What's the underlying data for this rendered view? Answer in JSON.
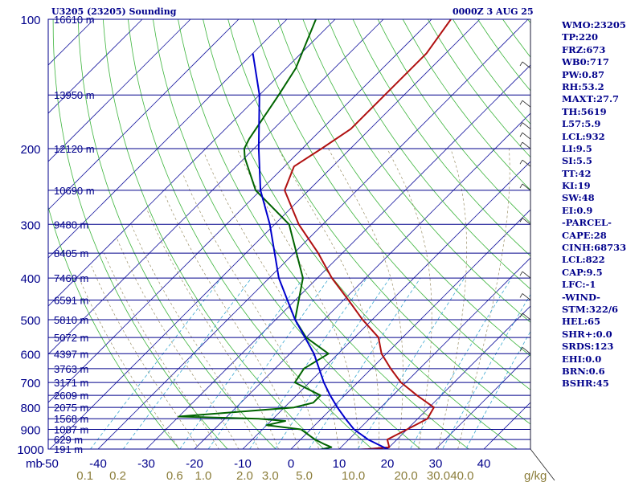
{
  "header": {
    "station": "U3205 (23205) Sounding",
    "valid": "0000Z  3 AUG 25"
  },
  "indices": [
    "WMO:23205",
    "TP:220",
    "FRZ:673",
    "WB0:717",
    "PW:0.87",
    "RH:53.2",
    "MAXT:27.7",
    "TH:5619",
    "L57:5.9",
    "LCL:932",
    "LI:9.5",
    "SI:5.5",
    "TT:42",
    "KI:19",
    "SW:48",
    "EI:0.9",
    "-PARCEL-",
    "CAPE:28",
    "CINH:68733",
    "LCL:822",
    "CAP:9.5",
    "LFC:-1",
    "-WIND-",
    "STM:322/6",
    "HEL:65",
    "SHR+:0.0",
    "SRDS:123",
    "EHI:0.0",
    "BRN:0.6",
    "BSHR:45"
  ],
  "chart_data": {
    "type": "line",
    "title": "U3205 (23205) Sounding",
    "xlabel": "",
    "ylabel": "mb",
    "y_scale": "log",
    "y_inverted": true,
    "ylim": [
      1000,
      100
    ],
    "xlim": [
      -50,
      50
    ],
    "x_ticks": [
      -50,
      -40,
      -30,
      -20,
      -10,
      0,
      10,
      20,
      30,
      40
    ],
    "x_tick_labels": [
      "-50",
      "-40",
      "-30",
      "-20",
      "-10",
      "0",
      "10",
      "20",
      "30",
      "40"
    ],
    "y_ticks": [
      100,
      200,
      300,
      400,
      500,
      600,
      700,
      800,
      900,
      1000
    ],
    "height_levels": [
      {
        "p": 100,
        "label": "16610 m"
      },
      {
        "p": 150,
        "label": "13950 m"
      },
      {
        "p": 200,
        "label": "12120 m"
      },
      {
        "p": 250,
        "label": "10690 m"
      },
      {
        "p": 300,
        "label": "9480 m"
      },
      {
        "p": 350,
        "label": "8405 m"
      },
      {
        "p": 400,
        "label": "7460 m"
      },
      {
        "p": 450,
        "label": "6591 m"
      },
      {
        "p": 500,
        "label": "5810 m"
      },
      {
        "p": 550,
        "label": "5072 m"
      },
      {
        "p": 600,
        "label": "4397 m"
      },
      {
        "p": 650,
        "label": "3763 m"
      },
      {
        "p": 700,
        "label": "3171 m"
      },
      {
        "p": 750,
        "label": "2609 m"
      },
      {
        "p": 800,
        "label": "2075 m"
      },
      {
        "p": 850,
        "label": "1568 m"
      },
      {
        "p": 900,
        "label": "1087 m"
      },
      {
        "p": 950,
        "label": "629 m"
      },
      {
        "p": 1000,
        "label": "191 m"
      }
    ],
    "mixing_ratio_labels": [
      "0.1",
      "0.2",
      "0.6",
      "1.0",
      "2.0",
      "3.0",
      "5.0",
      "10.0",
      "20.0",
      "30.0",
      "40.0"
    ],
    "mixing_ratio_unit": "g/kg",
    "series": [
      {
        "role": "temperature",
        "color": "#b01010",
        "values": [
          {
            "p": 1010,
            "t": 8
          },
          {
            "p": 1000,
            "t": 16
          },
          {
            "p": 990,
            "t": 20
          },
          {
            "p": 950,
            "t": 18
          },
          {
            "p": 900,
            "t": 20
          },
          {
            "p": 850,
            "t": 22
          },
          {
            "p": 800,
            "t": 21
          },
          {
            "p": 750,
            "t": 15
          },
          {
            "p": 700,
            "t": 9
          },
          {
            "p": 650,
            "t": 4
          },
          {
            "p": 600,
            "t": -1
          },
          {
            "p": 550,
            "t": -5
          },
          {
            "p": 500,
            "t": -12
          },
          {
            "p": 450,
            "t": -19
          },
          {
            "p": 400,
            "t": -27
          },
          {
            "p": 350,
            "t": -35
          },
          {
            "p": 300,
            "t": -45
          },
          {
            "p": 250,
            "t": -55
          },
          {
            "p": 220,
            "t": -58
          },
          {
            "p": 200,
            "t": -56
          },
          {
            "p": 180,
            "t": -54
          },
          {
            "p": 150,
            "t": -54
          },
          {
            "p": 120,
            "t": -54
          },
          {
            "p": 100,
            "t": -56
          }
        ]
      },
      {
        "role": "dewpoint",
        "color": "#006400",
        "values": [
          {
            "p": 1010,
            "t": 5
          },
          {
            "p": 990,
            "t": 8
          },
          {
            "p": 975,
            "t": 6
          },
          {
            "p": 950,
            "t": 3
          },
          {
            "p": 920,
            "t": 0
          },
          {
            "p": 900,
            "t": -2
          },
          {
            "p": 880,
            "t": -10
          },
          {
            "p": 860,
            "t": -7
          },
          {
            "p": 850,
            "t": -13
          },
          {
            "p": 840,
            "t": -30
          },
          {
            "p": 800,
            "t": -8
          },
          {
            "p": 780,
            "t": -5
          },
          {
            "p": 750,
            "t": -5
          },
          {
            "p": 700,
            "t": -13
          },
          {
            "p": 650,
            "t": -14
          },
          {
            "p": 600,
            "t": -12
          },
          {
            "p": 550,
            "t": -20
          },
          {
            "p": 500,
            "t": -26
          },
          {
            "p": 400,
            "t": -33
          },
          {
            "p": 300,
            "t": -47
          },
          {
            "p": 250,
            "t": -61
          },
          {
            "p": 210,
            "t": -70
          },
          {
            "p": 200,
            "t": -72
          },
          {
            "p": 190,
            "t": -73
          },
          {
            "p": 150,
            "t": -76
          },
          {
            "p": 130,
            "t": -78
          },
          {
            "p": 100,
            "t": -84
          }
        ]
      },
      {
        "role": "parcel",
        "color": "#0000cd",
        "values": [
          {
            "p": 1000,
            "t": 20
          },
          {
            "p": 950,
            "t": 14
          },
          {
            "p": 900,
            "t": 9
          },
          {
            "p": 850,
            "t": 5
          },
          {
            "p": 800,
            "t": 1
          },
          {
            "p": 750,
            "t": -3
          },
          {
            "p": 700,
            "t": -7
          },
          {
            "p": 600,
            "t": -15
          },
          {
            "p": 500,
            "t": -26
          },
          {
            "p": 400,
            "t": -38
          },
          {
            "p": 300,
            "t": -51
          },
          {
            "p": 250,
            "t": -60
          },
          {
            "p": 200,
            "t": -69
          },
          {
            "p": 150,
            "t": -80
          },
          {
            "p": 120,
            "t": -90
          }
        ]
      }
    ]
  }
}
